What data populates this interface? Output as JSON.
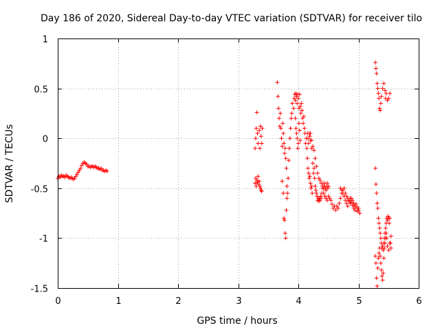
{
  "chart_data": {
    "type": "scatter",
    "title": "Day 186 of 2020, Sidereal Day-to-day VTEC variation (SDTVAR) for receiver tilo",
    "xlabel": "GPS time / hours",
    "ylabel": "SDTVAR / TECUs",
    "xlim": [
      0,
      6
    ],
    "ylim": [
      -1.5,
      1
    ],
    "xticks": [
      0,
      1,
      2,
      3,
      4,
      5,
      6
    ],
    "xtick_labels": [
      "0",
      "1",
      "2",
      "3",
      "4",
      "5",
      "6"
    ],
    "yticks": [
      -1.5,
      -1,
      -0.5,
      0,
      0.5,
      1
    ],
    "ytick_labels": [
      "-1.5",
      "-1",
      "-0.5",
      "0",
      "0.5",
      "1"
    ],
    "grid": true,
    "marker": "+",
    "color": "#ff0000",
    "series": [
      {
        "name": "SDTVAR",
        "points": [
          [
            0.0,
            -0.4
          ],
          [
            0.02,
            -0.38
          ],
          [
            0.04,
            -0.39
          ],
          [
            0.06,
            -0.37
          ],
          [
            0.08,
            -0.38
          ],
          [
            0.1,
            -0.38
          ],
          [
            0.12,
            -0.39
          ],
          [
            0.14,
            -0.37
          ],
          [
            0.16,
            -0.38
          ],
          [
            0.18,
            -0.39
          ],
          [
            0.2,
            -0.4
          ],
          [
            0.22,
            -0.39
          ],
          [
            0.24,
            -0.4
          ],
          [
            0.26,
            -0.41
          ],
          [
            0.28,
            -0.4
          ],
          [
            0.3,
            -0.38
          ],
          [
            0.32,
            -0.36
          ],
          [
            0.34,
            -0.34
          ],
          [
            0.36,
            -0.32
          ],
          [
            0.38,
            -0.3
          ],
          [
            0.4,
            -0.27
          ],
          [
            0.42,
            -0.25
          ],
          [
            0.44,
            -0.24
          ],
          [
            0.46,
            -0.25
          ],
          [
            0.48,
            -0.26
          ],
          [
            0.5,
            -0.28
          ],
          [
            0.52,
            -0.28
          ],
          [
            0.54,
            -0.29
          ],
          [
            0.56,
            -0.28
          ],
          [
            0.58,
            -0.28
          ],
          [
            0.6,
            -0.29
          ],
          [
            0.62,
            -0.28
          ],
          [
            0.64,
            -0.29
          ],
          [
            0.66,
            -0.3
          ],
          [
            0.68,
            -0.3
          ],
          [
            0.7,
            -0.31
          ],
          [
            0.72,
            -0.3
          ],
          [
            0.74,
            -0.32
          ],
          [
            0.76,
            -0.32
          ],
          [
            0.78,
            -0.33
          ],
          [
            0.8,
            -0.32
          ],
          [
            0.82,
            -0.33
          ],
          [
            3.28,
            -0.1
          ],
          [
            3.29,
            0.0
          ],
          [
            3.3,
            0.1
          ],
          [
            3.31,
            0.26
          ],
          [
            3.32,
            0.05
          ],
          [
            3.33,
            -0.05
          ],
          [
            3.35,
            0.08
          ],
          [
            3.36,
            -0.1
          ],
          [
            3.37,
            0.12
          ],
          [
            3.38,
            0.02
          ],
          [
            3.39,
            -0.05
          ],
          [
            3.4,
            0.1
          ],
          [
            3.28,
            -0.45
          ],
          [
            3.29,
            -0.4
          ],
          [
            3.3,
            -0.48
          ],
          [
            3.31,
            -0.42
          ],
          [
            3.32,
            -0.44
          ],
          [
            3.33,
            -0.38
          ],
          [
            3.34,
            -0.46
          ],
          [
            3.35,
            -0.43
          ],
          [
            3.36,
            -0.48
          ],
          [
            3.37,
            -0.5
          ],
          [
            3.38,
            -0.52
          ],
          [
            3.39,
            -0.53
          ],
          [
            3.65,
            0.56
          ],
          [
            3.66,
            0.42
          ],
          [
            3.67,
            0.3
          ],
          [
            3.68,
            0.2
          ],
          [
            3.69,
            0.12
          ],
          [
            3.7,
            0.25
          ],
          [
            3.71,
            0.1
          ],
          [
            3.72,
            0.0
          ],
          [
            3.73,
            -0.08
          ],
          [
            3.74,
            0.15
          ],
          [
            3.75,
            0.05
          ],
          [
            3.76,
            -0.05
          ],
          [
            3.77,
            -0.15
          ],
          [
            3.78,
            -0.1
          ],
          [
            3.79,
            -0.2
          ],
          [
            3.8,
            -0.3
          ],
          [
            3.81,
            -0.48
          ],
          [
            3.82,
            -0.55
          ],
          [
            3.83,
            -0.4
          ],
          [
            3.84,
            -0.22
          ],
          [
            3.85,
            -0.1
          ],
          [
            3.86,
            0.0
          ],
          [
            3.87,
            0.1
          ],
          [
            3.88,
            0.2
          ],
          [
            3.89,
            0.25
          ],
          [
            3.9,
            0.35
          ],
          [
            3.73,
            -0.43
          ],
          [
            3.75,
            -0.55
          ],
          [
            3.76,
            -0.8
          ],
          [
            3.77,
            -0.82
          ],
          [
            3.78,
            -0.95
          ],
          [
            3.79,
            -1.0
          ],
          [
            3.8,
            -0.72
          ],
          [
            3.81,
            -0.6
          ],
          [
            3.92,
            0.3
          ],
          [
            3.93,
            0.4
          ],
          [
            3.94,
            0.44
          ],
          [
            3.95,
            0.38
          ],
          [
            3.96,
            0.45
          ],
          [
            3.97,
            0.42
          ],
          [
            3.98,
            0.35
          ],
          [
            3.99,
            0.44
          ],
          [
            4.0,
            0.4
          ],
          [
            4.01,
            0.3
          ],
          [
            4.02,
            0.44
          ],
          [
            4.03,
            0.32
          ],
          [
            4.04,
            0.25
          ],
          [
            4.05,
            0.35
          ],
          [
            4.06,
            0.28
          ],
          [
            4.07,
            0.2
          ],
          [
            4.08,
            0.15
          ],
          [
            4.09,
            0.22
          ],
          [
            4.1,
            0.1
          ],
          [
            4.11,
            0.05
          ],
          [
            4.12,
            -0.05
          ],
          [
            4.13,
            0.0
          ],
          [
            4.14,
            -0.1
          ],
          [
            4.15,
            -0.2
          ],
          [
            4.16,
            -0.3
          ],
          [
            4.17,
            -0.35
          ],
          [
            4.18,
            -0.4
          ],
          [
            4.19,
            -0.38
          ],
          [
            4.2,
            -0.45
          ],
          [
            4.21,
            -0.5
          ],
          [
            4.22,
            -0.48
          ],
          [
            4.23,
            -0.55
          ],
          [
            3.95,
            0.2
          ],
          [
            3.96,
            0.1
          ],
          [
            3.97,
            0.05
          ],
          [
            3.98,
            0.0
          ],
          [
            3.99,
            -0.1
          ],
          [
            4.0,
            -0.05
          ],
          [
            4.01,
            0.15
          ],
          [
            4.02,
            0.08
          ],
          [
            4.03,
            -0.02
          ],
          [
            4.15,
            0.05
          ],
          [
            4.16,
            0.0
          ],
          [
            4.17,
            -0.05
          ],
          [
            4.18,
            0.05
          ],
          [
            4.19,
            0.02
          ],
          [
            4.2,
            -0.02
          ],
          [
            4.22,
            -0.1
          ],
          [
            4.24,
            -0.25
          ],
          [
            4.25,
            -0.35
          ],
          [
            4.26,
            -0.3
          ],
          [
            4.27,
            -0.4
          ],
          [
            4.28,
            -0.48
          ],
          [
            4.29,
            -0.52
          ],
          [
            4.3,
            -0.55
          ],
          [
            4.31,
            -0.58
          ],
          [
            4.32,
            -0.62
          ],
          [
            4.33,
            -0.6
          ],
          [
            4.34,
            -0.63
          ],
          [
            4.35,
            -0.6
          ],
          [
            4.36,
            -0.62
          ],
          [
            4.37,
            -0.58
          ],
          [
            4.38,
            -0.6
          ],
          [
            4.39,
            -0.55
          ],
          [
            4.4,
            -0.5
          ],
          [
            4.41,
            -0.45
          ],
          [
            4.42,
            -0.5
          ],
          [
            4.43,
            -0.48
          ],
          [
            4.44,
            -0.45
          ],
          [
            4.45,
            -0.5
          ],
          [
            4.46,
            -0.52
          ],
          [
            4.47,
            -0.48
          ],
          [
            4.48,
            -0.45
          ],
          [
            4.49,
            -0.5
          ],
          [
            4.5,
            -0.48
          ],
          [
            4.2,
            0.05
          ],
          [
            4.22,
            -0.02
          ],
          [
            4.24,
            -0.08
          ],
          [
            4.26,
            -0.12
          ],
          [
            4.28,
            -0.2
          ],
          [
            4.3,
            -0.28
          ],
          [
            4.32,
            -0.35
          ],
          [
            4.34,
            -0.4
          ],
          [
            4.36,
            -0.42
          ],
          [
            4.38,
            -0.45
          ],
          [
            4.4,
            -0.48
          ],
          [
            4.42,
            -0.55
          ],
          [
            4.44,
            -0.58
          ],
          [
            4.46,
            -0.6
          ],
          [
            4.48,
            -0.62
          ],
          [
            4.5,
            -0.58
          ],
          [
            4.52,
            -0.6
          ],
          [
            4.54,
            -0.62
          ],
          [
            4.56,
            -0.66
          ],
          [
            4.58,
            -0.7
          ],
          [
            4.6,
            -0.68
          ],
          [
            4.62,
            -0.72
          ],
          [
            4.64,
            -0.68
          ],
          [
            4.66,
            -0.7
          ],
          [
            4.68,
            -0.65
          ],
          [
            4.7,
            -0.6
          ],
          [
            4.72,
            -0.55
          ],
          [
            4.74,
            -0.52
          ],
          [
            4.76,
            -0.5
          ],
          [
            4.78,
            -0.55
          ],
          [
            4.8,
            -0.58
          ],
          [
            4.82,
            -0.6
          ],
          [
            4.84,
            -0.62
          ],
          [
            4.86,
            -0.65
          ],
          [
            4.88,
            -0.6
          ],
          [
            4.9,
            -0.62
          ],
          [
            4.92,
            -0.65
          ],
          [
            4.94,
            -0.68
          ],
          [
            4.96,
            -0.66
          ],
          [
            4.98,
            -0.7
          ],
          [
            5.0,
            -0.72
          ],
          [
            5.02,
            -0.75
          ],
          [
            4.7,
            -0.5
          ],
          [
            4.72,
            -0.52
          ],
          [
            4.74,
            -0.55
          ],
          [
            4.76,
            -0.58
          ],
          [
            4.78,
            -0.62
          ],
          [
            4.8,
            -0.65
          ],
          [
            4.82,
            -0.68
          ],
          [
            4.84,
            -0.63
          ],
          [
            4.86,
            -0.6
          ],
          [
            4.88,
            -0.64
          ],
          [
            4.9,
            -0.67
          ],
          [
            4.92,
            -0.7
          ],
          [
            4.94,
            -0.72
          ],
          [
            4.96,
            -0.68
          ],
          [
            4.98,
            -0.73
          ],
          [
            5.0,
            -0.7
          ],
          [
            5.28,
            0.76
          ],
          [
            5.29,
            0.7
          ],
          [
            5.3,
            0.65
          ],
          [
            5.31,
            0.55
          ],
          [
            5.32,
            0.5
          ],
          [
            5.33,
            0.45
          ],
          [
            5.34,
            0.4
          ],
          [
            5.35,
            0.3
          ],
          [
            5.36,
            0.28
          ],
          [
            5.37,
            0.35
          ],
          [
            5.38,
            0.42
          ],
          [
            5.4,
            0.5
          ],
          [
            5.42,
            0.55
          ],
          [
            5.44,
            0.48
          ],
          [
            5.45,
            0.4
          ],
          [
            5.46,
            0.45
          ],
          [
            5.48,
            0.38
          ],
          [
            5.5,
            0.4
          ],
          [
            5.52,
            0.45
          ],
          [
            5.28,
            -0.3
          ],
          [
            5.29,
            -0.46
          ],
          [
            5.3,
            -0.55
          ],
          [
            5.31,
            -0.65
          ],
          [
            5.32,
            -0.7
          ],
          [
            5.33,
            -0.8
          ],
          [
            5.34,
            -0.85
          ],
          [
            5.35,
            -0.9
          ],
          [
            5.36,
            -0.95
          ],
          [
            5.37,
            -1.0
          ],
          [
            5.38,
            -1.05
          ],
          [
            5.39,
            -1.1
          ],
          [
            5.4,
            -1.08
          ],
          [
            5.41,
            -1.12
          ],
          [
            5.42,
            -1.05
          ],
          [
            5.43,
            -1.0
          ],
          [
            5.44,
            -0.95
          ],
          [
            5.45,
            -0.9
          ],
          [
            5.46,
            -0.85
          ],
          [
            5.47,
            -0.8
          ],
          [
            5.48,
            -0.82
          ],
          [
            5.49,
            -0.78
          ],
          [
            5.5,
            -0.8
          ],
          [
            5.51,
            -0.85
          ],
          [
            5.52,
            -0.8
          ],
          [
            5.53,
            -1.05
          ],
          [
            5.54,
            -1.1
          ],
          [
            5.28,
            -1.18
          ],
          [
            5.29,
            -1.25
          ],
          [
            5.3,
            -1.4
          ],
          [
            5.31,
            -1.48
          ],
          [
            5.32,
            -1.3
          ],
          [
            5.33,
            -1.2
          ],
          [
            5.34,
            -1.15
          ],
          [
            5.35,
            -1.1
          ],
          [
            5.36,
            -1.18
          ],
          [
            5.37,
            -1.25
          ],
          [
            5.38,
            -1.32
          ],
          [
            5.39,
            -1.38
          ],
          [
            5.4,
            -1.42
          ],
          [
            5.41,
            -1.35
          ],
          [
            5.42,
            -1.2
          ],
          [
            5.43,
            -1.1
          ],
          [
            5.44,
            -1.05
          ],
          [
            5.45,
            -1.0
          ],
          [
            5.46,
            -0.95
          ],
          [
            5.47,
            -1.0
          ],
          [
            5.48,
            -1.08
          ],
          [
            5.5,
            -1.12
          ],
          [
            5.52,
            -1.05
          ],
          [
            5.54,
            -0.98
          ]
        ]
      }
    ]
  }
}
